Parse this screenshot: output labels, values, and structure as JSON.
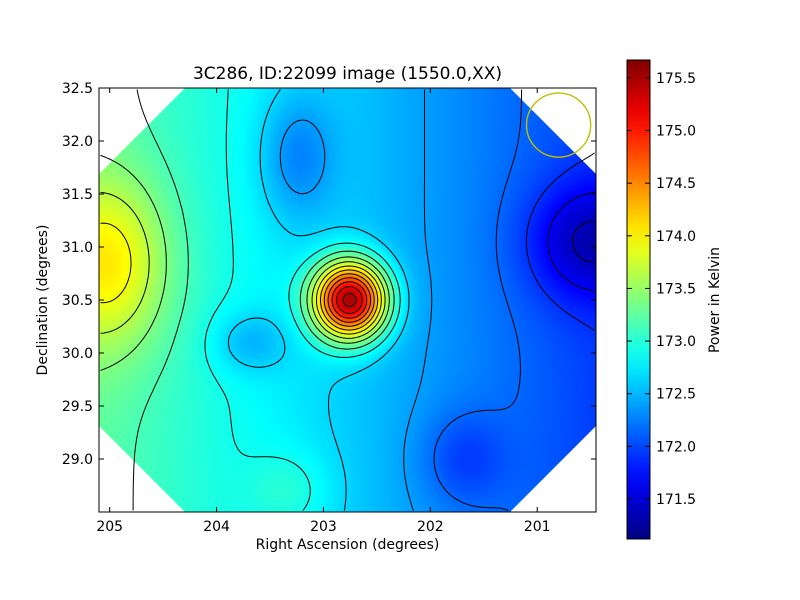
{
  "chart_data": {
    "type": "heatmap",
    "title": "3C286, ID:22099 image (1550.0,XX)",
    "xlabel": "Right Ascension (degrees)",
    "ylabel": "Declination (degrees)",
    "xlim": [
      205.1,
      200.45
    ],
    "ylim": [
      28.5,
      32.5
    ],
    "x_ticks": [
      205,
      204,
      203,
      202,
      201
    ],
    "y_ticks": [
      29.0,
      29.5,
      30.0,
      30.5,
      31.0,
      31.5,
      32.0,
      32.5
    ],
    "x_tick_labels": [
      "205",
      "204",
      "203",
      "202",
      "201"
    ],
    "y_tick_labels": [
      "29.0",
      "29.5",
      "30.0",
      "30.5",
      "31.0",
      "31.5",
      "32.0",
      "32.5"
    ],
    "colorbar": {
      "label": "Power in Kelvin",
      "range": [
        171.12,
        175.67
      ],
      "ticks": [
        171.5,
        172.0,
        172.5,
        173.0,
        173.5,
        174.0,
        174.5,
        175.0,
        175.5
      ],
      "tick_labels": [
        "171.5",
        "172.0",
        "172.5",
        "173.0",
        "173.5",
        "174.0",
        "174.5",
        "175.0",
        "175.5"
      ],
      "colormap": "jet"
    },
    "contours": true,
    "features": [
      {
        "kind": "peak",
        "ra": 202.75,
        "dec": 30.5,
        "value": 175.6
      },
      {
        "kind": "minimum",
        "ra": 200.55,
        "dec": 31.05,
        "value": 171.15
      },
      {
        "kind": "local-high",
        "ra": 205.0,
        "dec": 30.85,
        "value": 173.9
      },
      {
        "kind": "local-low",
        "ra": 203.7,
        "dec": 30.1,
        "value": 172.45
      },
      {
        "kind": "local-low",
        "ra": 203.25,
        "dec": 31.85,
        "value": 171.9
      }
    ],
    "beam": {
      "ra": 200.8,
      "dec": 32.15,
      "radius_deg": 0.3,
      "color": "#bfbf00"
    },
    "colors": {
      "contour": "#000000",
      "beam": "#bfbf00"
    }
  }
}
